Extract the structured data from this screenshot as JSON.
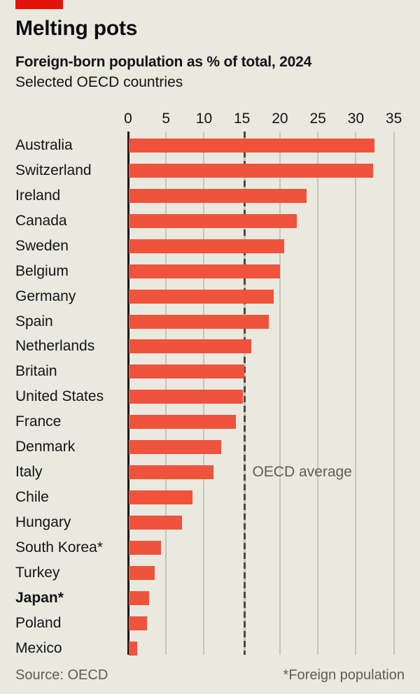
{
  "header": {
    "title": "Melting pots",
    "subtitle": "Foreign-born population as % of total, 2024",
    "note": "Selected OECD countries"
  },
  "chart_data": {
    "type": "bar",
    "orientation": "horizontal",
    "title": "Melting pots",
    "subtitle": "Foreign-born population as % of total, 2024",
    "unit": "% of total population",
    "categories": [
      "Australia",
      "Switzerland",
      "Ireland",
      "Canada",
      "Sweden",
      "Belgium",
      "Germany",
      "Spain",
      "Netherlands",
      "Britain",
      "United States",
      "France",
      "Denmark",
      "Italy",
      "Chile",
      "Hungary",
      "South Korea*",
      "Turkey",
      "Japan*",
      "Poland",
      "Mexico"
    ],
    "values": [
      32.4,
      32.2,
      23.4,
      22.1,
      20.5,
      19.9,
      19.1,
      18.4,
      16.1,
      15.2,
      15.0,
      14.1,
      12.2,
      11.2,
      8.4,
      7.0,
      4.2,
      3.4,
      2.7,
      2.4,
      1.1
    ],
    "bold_categories": [
      "Japan*"
    ],
    "x_ticks": [
      0,
      5,
      10,
      15,
      20,
      25,
      30,
      35
    ],
    "xlim": [
      0,
      35
    ],
    "grid": true,
    "reference_line": {
      "value": 15.35,
      "label": "OECD average"
    }
  },
  "footer": {
    "source": "Source: OECD",
    "note": "*Foreign population"
  },
  "colors": {
    "background": "#e9e9e0",
    "accent_tag": "#e3120b",
    "bar": "#f0533b",
    "gridline": "#c6c6bd",
    "axis": "#111111",
    "reference_dash_dark": "#48484a",
    "reference_dash_light": "#c6c6bd",
    "text": "#141414",
    "muted_text": "#5e5e58"
  }
}
